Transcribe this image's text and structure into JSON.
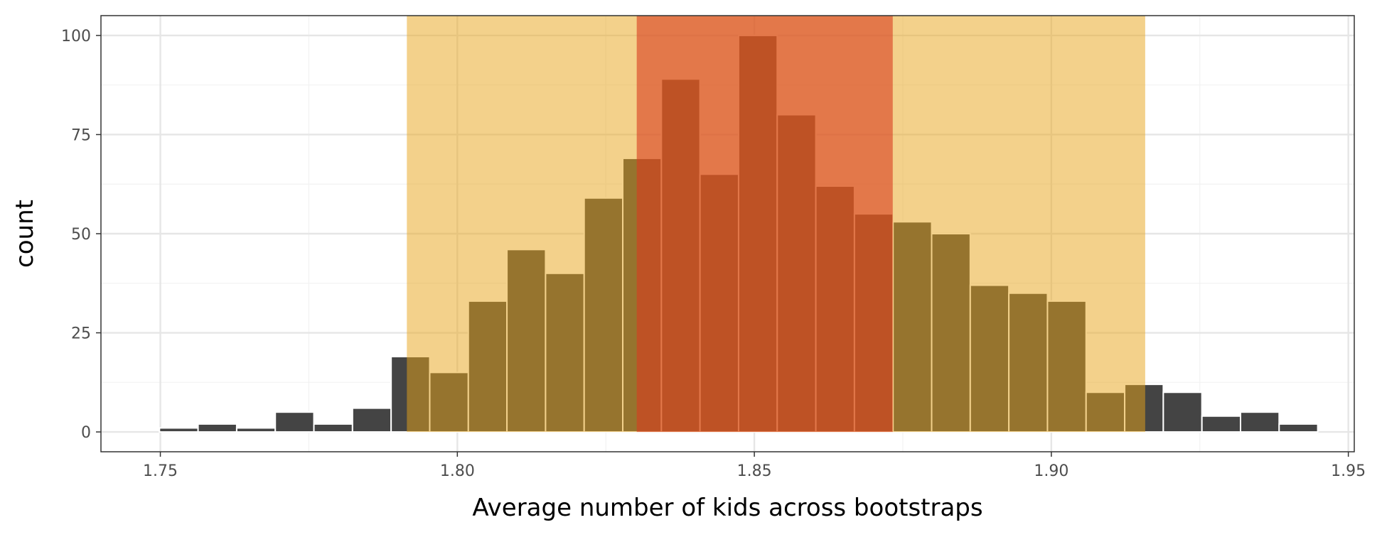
{
  "chart_data": {
    "type": "bar",
    "xlabel": "Average number of kids across bootstraps",
    "ylabel": "count",
    "xlim": [
      1.74,
      1.951
    ],
    "ylim": [
      -5,
      105
    ],
    "x_ticks": [
      1.75,
      1.8,
      1.85,
      1.9,
      1.95
    ],
    "x_tick_labels": [
      "1.75",
      "1.80",
      "1.85",
      "1.90",
      "1.95"
    ],
    "y_ticks": [
      0,
      25,
      50,
      75,
      100
    ],
    "y_tick_labels": [
      "0",
      "25",
      "50",
      "75",
      "100"
    ],
    "grid": true,
    "bin_width": 0.0065,
    "bins": [
      {
        "x": 1.7531,
        "count": 1
      },
      {
        "x": 1.7596,
        "count": 2
      },
      {
        "x": 1.7661,
        "count": 1
      },
      {
        "x": 1.7726,
        "count": 5
      },
      {
        "x": 1.7791,
        "count": 2
      },
      {
        "x": 1.7856,
        "count": 6
      },
      {
        "x": 1.7921,
        "count": 19
      },
      {
        "x": 1.7986,
        "count": 15
      },
      {
        "x": 1.8051,
        "count": 33
      },
      {
        "x": 1.8116,
        "count": 46
      },
      {
        "x": 1.8181,
        "count": 40
      },
      {
        "x": 1.8246,
        "count": 59
      },
      {
        "x": 1.8311,
        "count": 69
      },
      {
        "x": 1.8376,
        "count": 89
      },
      {
        "x": 1.8441,
        "count": 65
      },
      {
        "x": 1.8506,
        "count": 100
      },
      {
        "x": 1.8571,
        "count": 80
      },
      {
        "x": 1.8636,
        "count": 62
      },
      {
        "x": 1.8701,
        "count": 55
      },
      {
        "x": 1.8766,
        "count": 53
      },
      {
        "x": 1.8831,
        "count": 50
      },
      {
        "x": 1.8896,
        "count": 37
      },
      {
        "x": 1.8961,
        "count": 35
      },
      {
        "x": 1.9026,
        "count": 33
      },
      {
        "x": 1.9091,
        "count": 10
      },
      {
        "x": 1.9156,
        "count": 12
      },
      {
        "x": 1.9221,
        "count": 10
      },
      {
        "x": 1.9286,
        "count": 4
      },
      {
        "x": 1.9351,
        "count": 5
      },
      {
        "x": 1.9416,
        "count": 2
      }
    ],
    "intervals": [
      {
        "from": 1.7915,
        "to": 1.9158,
        "color": "#E8A317",
        "opacity": 0.5
      },
      {
        "from": 1.8302,
        "to": 1.8733,
        "color": "#D83C20",
        "opacity": 0.6
      }
    ],
    "colors": {
      "bar_fill": "#444444",
      "bar_stroke": "#ffffff",
      "grid_major": "#e6e6e6",
      "grid_minor": "#f2f2f2",
      "panel_border": "#333333"
    }
  }
}
